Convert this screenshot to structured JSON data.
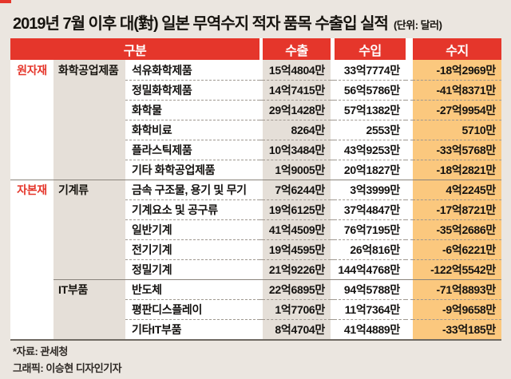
{
  "title": "2019년 7월 이후 대(對) 일본 무역수지 적자 품목 수출입 실적",
  "unit_label": "(단위: 달러)",
  "footer": {
    "source": "*자료: 관세청",
    "credit": "그래픽: 이승현 디자인기자"
  },
  "colors": {
    "accent_red": "#e5362b",
    "page_bg": "#ebe6e0",
    "beige_cell": "#e5dfd8",
    "balance_orange": "#fbc87e",
    "header_text": "#ffffff"
  },
  "chart_data": {
    "type": "table",
    "title": "2019년 7월 이후 대(對) 일본 무역수지 적자 품목 수출입 실적",
    "unit": "(단위: 달러)",
    "columns": [
      "구분",
      "수출",
      "수입",
      "수지"
    ],
    "groups": [
      {
        "group": "원자재",
        "sections": [
          {
            "category": "화학공업제품",
            "rows": [
              {
                "item": "석유화학제품",
                "export": "15억4804만",
                "import": "33억7774만",
                "balance": "-18억2969만"
              },
              {
                "item": "정밀화학제품",
                "export": "14억7415만",
                "import": "56억5786만",
                "balance": "-41억8371만"
              },
              {
                "item": "화학물",
                "export": "29억1428만",
                "import": "57억1382만",
                "balance": "-27억9954만"
              },
              {
                "item": "화학비료",
                "export": "8264만",
                "import": "2553만",
                "balance": "5710만"
              },
              {
                "item": "플라스틱제품",
                "export": "10억3484만",
                "import": "43억9253만",
                "balance": "-33억5768만"
              },
              {
                "item": "기타 화학공업제품",
                "export": "1억9005만",
                "import": "20억1827만",
                "balance": "-18억2821만"
              }
            ]
          }
        ]
      },
      {
        "group": "자본재",
        "sections": [
          {
            "category": "기계류",
            "rows": [
              {
                "item": "금속 구조물, 용기 및 무기",
                "export": "7억6244만",
                "import": "3억3999만",
                "balance": "4억2245만"
              },
              {
                "item": "기계요소 및 공구류",
                "export": "19억6125만",
                "import": "37억4847만",
                "balance": "-17억8721만"
              },
              {
                "item": "일반기계",
                "export": "41억4509만",
                "import": "76억7195만",
                "balance": "-35억2686만"
              },
              {
                "item": "전기기계",
                "export": "19억4595만",
                "import": "26억816만",
                "balance": "-6억6221만"
              },
              {
                "item": "정밀기계",
                "export": "21억9226만",
                "import": "144억4768만",
                "balance": "-122억5542만"
              }
            ]
          },
          {
            "category": "IT부품",
            "rows": [
              {
                "item": "반도체",
                "export": "22억6895만",
                "import": "94억5788만",
                "balance": "-71억8893만"
              },
              {
                "item": "평판디스플레이",
                "export": "1억7706만",
                "import": "11억7364만",
                "balance": "-9억9658만"
              },
              {
                "item": "기타IT부품",
                "export": "8억4704만",
                "import": "41억4889만",
                "balance": "-33억185만"
              }
            ]
          }
        ]
      }
    ]
  }
}
